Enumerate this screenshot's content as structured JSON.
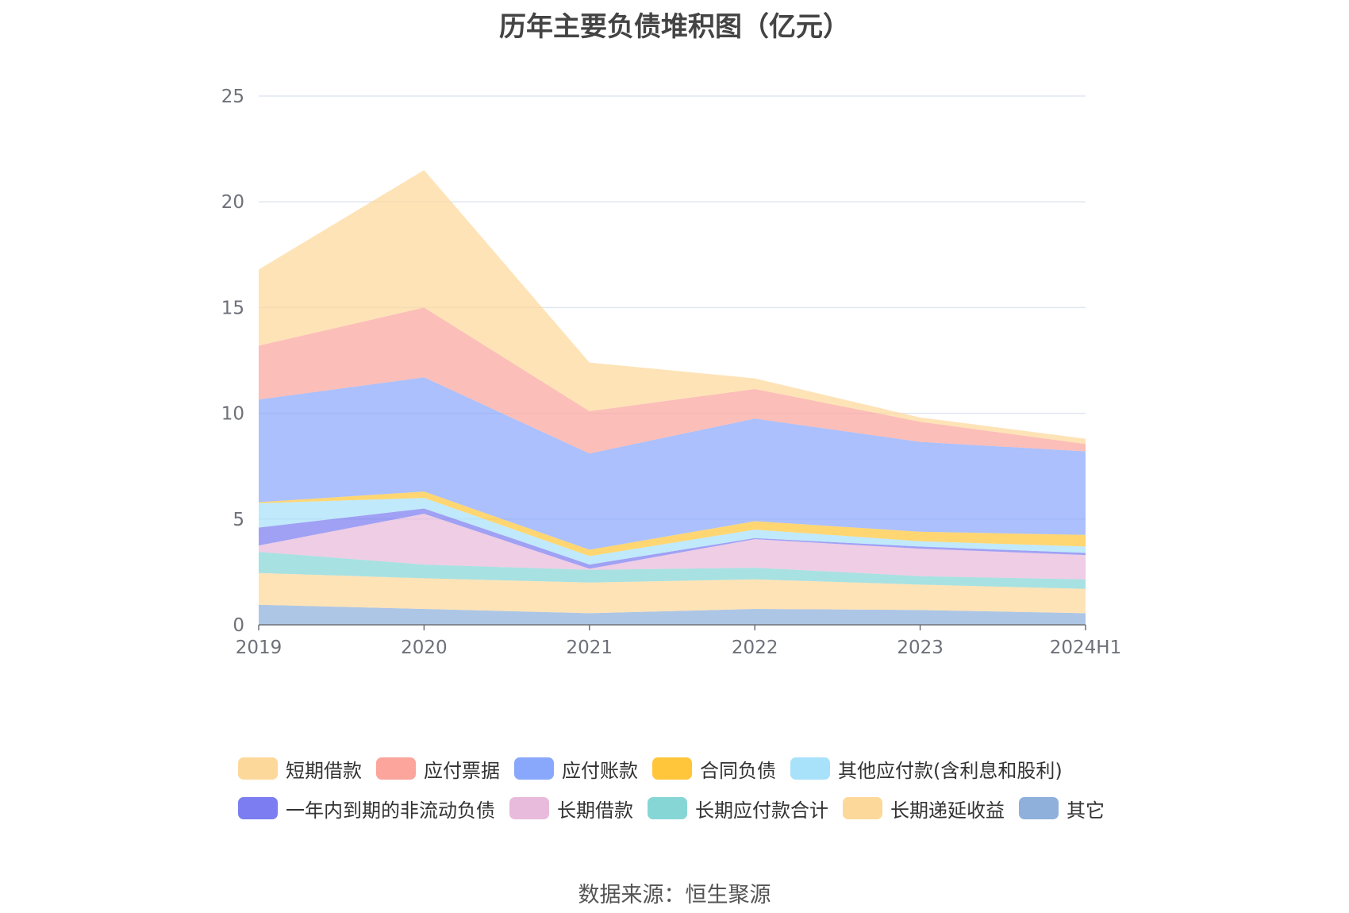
{
  "chart_data": {
    "type": "area",
    "stacked": true,
    "title": "历年主要负债堆积图（亿元）",
    "x": [
      "2019",
      "2020",
      "2021",
      "2022",
      "2023",
      "2024H1"
    ],
    "ylim": [
      0,
      25
    ],
    "yticks": [
      "0",
      "5",
      "10",
      "15",
      "20",
      "25"
    ],
    "grid": true,
    "legend_position": "bottom",
    "series": [
      {
        "name": "其它",
        "color": "#8eb0db",
        "values": [
          0.95,
          0.75,
          0.55,
          0.75,
          0.7,
          0.55
        ]
      },
      {
        "name": "长期递延收益",
        "color": "#fdd89b",
        "values": [
          1.5,
          1.45,
          1.45,
          1.4,
          1.2,
          1.15
        ]
      },
      {
        "name": "长期应付款合计",
        "color": "#86d6d6",
        "values": [
          1.0,
          0.65,
          0.6,
          0.55,
          0.4,
          0.45
        ]
      },
      {
        "name": "长期借款",
        "color": "#e8badb",
        "values": [
          0.3,
          2.4,
          0.05,
          1.35,
          1.3,
          1.15
        ]
      },
      {
        "name": "一年内到期的非流动负债",
        "color": "#7b7df0",
        "values": [
          0.85,
          0.25,
          0.2,
          0.05,
          0.1,
          0.1
        ]
      },
      {
        "name": "其他应付款(含利息和股利)",
        "color": "#a8e1fa",
        "values": [
          1.15,
          0.5,
          0.4,
          0.4,
          0.25,
          0.3
        ]
      },
      {
        "name": "合同负债",
        "color": "#ffc63c",
        "values": [
          0.05,
          0.3,
          0.3,
          0.4,
          0.45,
          0.55
        ]
      },
      {
        "name": "应付账款",
        "color": "#8aa8fb",
        "values": [
          4.85,
          5.4,
          4.55,
          4.85,
          4.25,
          3.95
        ]
      },
      {
        "name": "应付票据",
        "color": "#fba59c",
        "values": [
          2.55,
          3.3,
          2.0,
          1.4,
          0.95,
          0.35
        ]
      },
      {
        "name": "短期借款",
        "color": "#fdd89b",
        "values": [
          3.6,
          6.5,
          2.3,
          0.5,
          0.2,
          0.25
        ]
      }
    ]
  },
  "legend": {
    "items": [
      {
        "name": "短期借款",
        "color": "#fdd89b"
      },
      {
        "name": "应付票据",
        "color": "#fba59c"
      },
      {
        "name": "应付账款",
        "color": "#8aa8fb"
      },
      {
        "name": "合同负债",
        "color": "#ffc63c"
      },
      {
        "name": "其他应付款(含利息和股利)",
        "color": "#a8e1fa"
      },
      {
        "name": "一年内到期的非流动负债",
        "color": "#7b7df0"
      },
      {
        "name": "长期借款",
        "color": "#e8badb"
      },
      {
        "name": "长期应付款合计",
        "color": "#86d6d6"
      },
      {
        "name": "长期递延收益",
        "color": "#fdd89b"
      },
      {
        "name": "其它",
        "color": "#8eb0db"
      }
    ]
  },
  "source": "数据来源：恒生聚源"
}
